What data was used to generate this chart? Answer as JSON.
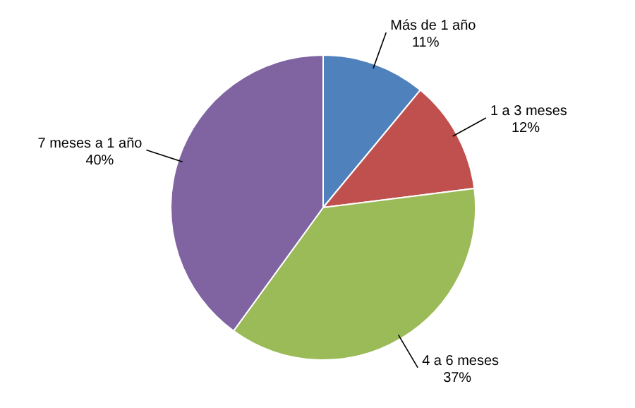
{
  "chart_data": {
    "type": "pie",
    "categories": [
      "Más de 1 año",
      "1 a 3 meses",
      "4 a 6 meses",
      "7 meses a 1 año"
    ],
    "values": [
      11,
      12,
      37,
      40
    ],
    "colors": [
      "#4f81bd",
      "#c0504d",
      "#9bbb59",
      "#8064a2"
    ],
    "value_labels": [
      "11%",
      "12%",
      "37%",
      "40%"
    ],
    "legend": false
  }
}
